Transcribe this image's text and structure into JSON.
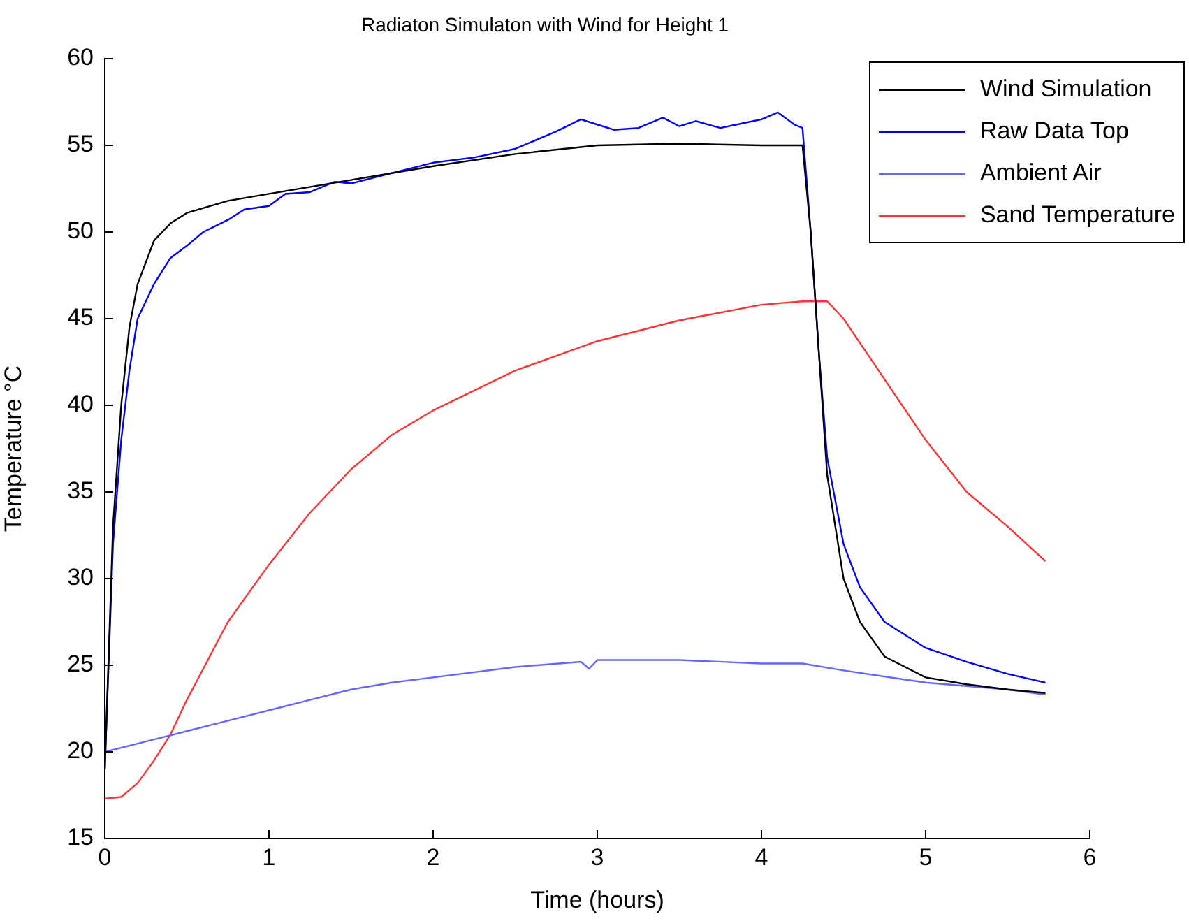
{
  "chart_data": {
    "type": "line",
    "title": "Radiaton Simulaton with Wind for Height 1",
    "xlabel": "Time (hours)",
    "ylabel": "Temperature °C",
    "xlim": [
      0,
      6
    ],
    "xticks": [
      0,
      1,
      2,
      3,
      4,
      5,
      6
    ],
    "ylim": [
      15,
      60
    ],
    "yticks": [
      15,
      20,
      25,
      30,
      35,
      40,
      45,
      50,
      55,
      60
    ],
    "grid": false,
    "legend": "top right",
    "marker": "none",
    "line_style": "solid",
    "series": [
      {
        "name": "Wind Simulation",
        "color": "#000000",
        "x": [
          0,
          0.05,
          0.1,
          0.15,
          0.2,
          0.3,
          0.4,
          0.5,
          0.75,
          1,
          1.5,
          2,
          2.5,
          3,
          3.5,
          4,
          4.25,
          4.3,
          4.35,
          4.4,
          4.5,
          4.6,
          4.75,
          5,
          5.25,
          5.5,
          5.73
        ],
        "values": [
          19,
          33,
          40,
          44.5,
          47,
          49.5,
          50.5,
          51.1,
          51.8,
          52.2,
          53,
          53.8,
          54.5,
          55,
          55.1,
          55,
          55,
          50,
          43,
          36,
          30,
          27.5,
          25.5,
          24.3,
          23.9,
          23.6,
          23.4
        ]
      },
      {
        "name": "Raw Data Top",
        "color": "#0000ff",
        "x": [
          0,
          0.05,
          0.1,
          0.15,
          0.2,
          0.3,
          0.4,
          0.5,
          0.6,
          0.75,
          0.85,
          1,
          1.1,
          1.25,
          1.4,
          1.5,
          1.75,
          2,
          2.25,
          2.5,
          2.75,
          2.9,
          3,
          3.1,
          3.25,
          3.4,
          3.5,
          3.6,
          3.75,
          3.9,
          4,
          4.1,
          4.2,
          4.25,
          4.3,
          4.35,
          4.4,
          4.5,
          4.6,
          4.75,
          5,
          5.25,
          5.5,
          5.73
        ],
        "values": [
          19,
          32,
          38,
          42,
          45,
          47,
          48.5,
          49.2,
          50,
          50.7,
          51.3,
          51.5,
          52.2,
          52.3,
          52.9,
          52.8,
          53.4,
          54,
          54.3,
          54.8,
          55.8,
          56.5,
          56.2,
          55.9,
          56,
          56.6,
          56.1,
          56.4,
          56,
          56.3,
          56.5,
          56.9,
          56.2,
          56,
          50,
          43,
          37,
          32,
          29.5,
          27.5,
          26,
          25.2,
          24.5,
          24
        ]
      },
      {
        "name": "Ambient Air",
        "color": "#6666ff",
        "x": [
          0,
          0.25,
          0.5,
          0.75,
          1,
          1.25,
          1.5,
          1.75,
          2,
          2.5,
          2.9,
          2.95,
          3,
          3.5,
          4,
          4.25,
          4.5,
          5,
          5.5,
          5.73
        ],
        "values": [
          20,
          20.6,
          21.2,
          21.8,
          22.4,
          23,
          23.6,
          24,
          24.3,
          24.9,
          25.2,
          24.8,
          25.3,
          25.3,
          25.1,
          25.1,
          24.7,
          24,
          23.6,
          23.3
        ]
      },
      {
        "name": "Sand Temperature",
        "color": "#ff3333",
        "x": [
          0,
          0.1,
          0.2,
          0.3,
          0.4,
          0.5,
          0.75,
          1,
          1.25,
          1.5,
          1.75,
          2,
          2.5,
          3,
          3.5,
          4,
          4.25,
          4.4,
          4.5,
          4.75,
          5,
          5.25,
          5.5,
          5.73
        ],
        "values": [
          17.3,
          17.4,
          18.2,
          19.5,
          21,
          23,
          27.5,
          30.8,
          33.8,
          36.3,
          38.3,
          39.7,
          42,
          43.7,
          44.9,
          45.8,
          46,
          46,
          45,
          41.5,
          38,
          35,
          33,
          31
        ]
      }
    ]
  }
}
